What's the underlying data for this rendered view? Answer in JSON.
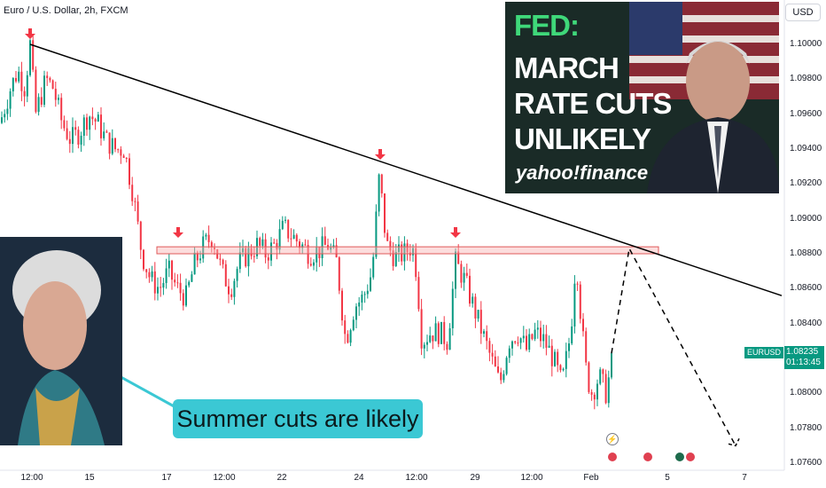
{
  "header": {
    "title": "Euro / U.S. Dollar, 2h, FXCM",
    "currency": "USD"
  },
  "price": {
    "symbol": "EURUSD",
    "last": "1.08235",
    "countdown": "01:13:45"
  },
  "colors": {
    "up": "#089981",
    "down": "#f23645",
    "trendline": "#000000",
    "zone": "#f8b4b4",
    "callout": "#3bc8d4"
  },
  "chart_data": {
    "type": "candlestick",
    "title": "Euro / U.S. Dollar, 2h, FXCM",
    "y_ticks": [
      "1.10000",
      "1.09800",
      "1.09600",
      "1.09400",
      "1.09200",
      "1.09000",
      "1.08800",
      "1.08600",
      "1.08400",
      "1.08200",
      "1.08000",
      "1.07800",
      "1.07600"
    ],
    "ylim": [
      1.0755,
      1.1025
    ],
    "x_ticks": [
      "12:00",
      "15",
      "17",
      "12:00",
      "22",
      "24",
      "12:00",
      "29",
      "12:00",
      "Feb",
      "5",
      "7"
    ],
    "path": [
      [
        0,
        1.0955
      ],
      [
        12,
        1.0975
      ],
      [
        20,
        1.0985
      ],
      [
        28,
        1.0975
      ],
      [
        34,
        1.1
      ],
      [
        40,
        1.096
      ],
      [
        46,
        1.097
      ],
      [
        52,
        1.098
      ],
      [
        60,
        1.0975
      ],
      [
        70,
        1.0955
      ],
      [
        80,
        1.0945
      ],
      [
        90,
        1.095
      ],
      [
        100,
        1.096
      ],
      [
        110,
        1.0955
      ],
      [
        120,
        1.0945
      ],
      [
        130,
        1.094
      ],
      [
        140,
        1.094
      ],
      [
        150,
        1.0915
      ],
      [
        160,
        1.088
      ],
      [
        170,
        1.0865
      ],
      [
        180,
        1.086
      ],
      [
        190,
        1.087
      ],
      [
        200,
        1.086
      ],
      [
        210,
        1.0855
      ],
      [
        220,
        1.0875
      ],
      [
        230,
        1.0885
      ],
      [
        240,
        1.089
      ],
      [
        250,
        1.087
      ],
      [
        260,
        1.086
      ],
      [
        270,
        1.0875
      ],
      [
        280,
        1.088
      ],
      [
        290,
        1.0885
      ],
      [
        300,
        1.088
      ],
      [
        310,
        1.0885
      ],
      [
        320,
        1.0895
      ],
      [
        330,
        1.089
      ],
      [
        340,
        1.0885
      ],
      [
        350,
        1.088
      ],
      [
        360,
        1.0882
      ],
      [
        370,
        1.0885
      ],
      [
        380,
        1.0875
      ],
      [
        390,
        1.083
      ],
      [
        400,
        1.085
      ],
      [
        410,
        1.0855
      ],
      [
        420,
        1.087
      ],
      [
        428,
        1.0925
      ],
      [
        436,
        1.0885
      ],
      [
        446,
        1.0878
      ],
      [
        456,
        1.088
      ],
      [
        465,
        1.0885
      ],
      [
        470,
        1.087
      ],
      [
        476,
        1.083
      ],
      [
        486,
        1.0835
      ],
      [
        496,
        1.0835
      ],
      [
        505,
        1.083
      ],
      [
        514,
        1.0875
      ],
      [
        524,
        1.0865
      ],
      [
        534,
        1.085
      ],
      [
        544,
        1.0835
      ],
      [
        554,
        1.082
      ],
      [
        564,
        1.0805
      ],
      [
        574,
        1.083
      ],
      [
        584,
        1.0835
      ],
      [
        594,
        1.0825
      ],
      [
        604,
        1.0835
      ],
      [
        614,
        1.083
      ],
      [
        624,
        1.082
      ],
      [
        634,
        1.0805
      ],
      [
        644,
        1.0835
      ],
      [
        650,
        1.088
      ],
      [
        656,
        1.084
      ],
      [
        662,
        1.081
      ],
      [
        668,
        1.08
      ],
      [
        676,
        1.081
      ],
      [
        684,
        1.08
      ],
      [
        692,
        1.0823
      ]
    ],
    "trendline": {
      "x": [
        34,
        882
      ],
      "y": [
        1.1,
        1.0856
      ]
    },
    "resistance_zone": {
      "x": [
        177,
        743
      ],
      "y": [
        1.088,
        1.0884
      ]
    },
    "projection": {
      "x": [
        690,
        710,
        830
      ],
      "y": [
        1.0823,
        1.0883,
        1.077
      ]
    },
    "markers_x": [
      34,
      201,
      429,
      514
    ],
    "annotations": {
      "fed_headline": [
        "FED:",
        "MARCH",
        "RATE CUTS",
        "UNLIKELY"
      ],
      "fed_brand": "yahoo!finance",
      "callout": "Summer cuts are likely"
    }
  }
}
